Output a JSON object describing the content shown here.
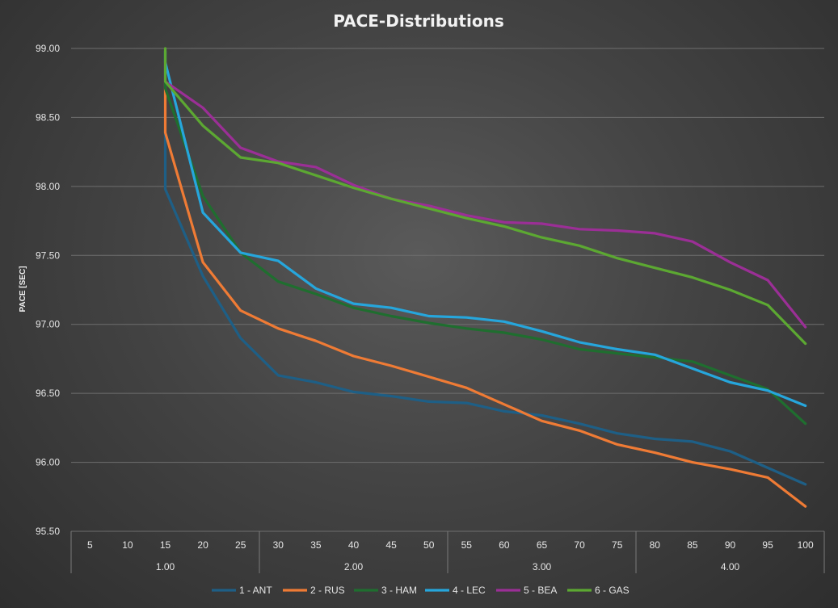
{
  "chart_data": {
    "type": "line",
    "title": "PACE-Distributions",
    "ylabel": "PACE [SEC]",
    "xlabel": "",
    "ylim": [
      95.5,
      99.0
    ],
    "yticks": [
      "95.50",
      "96.00",
      "96.50",
      "97.00",
      "97.50",
      "98.00",
      "98.50",
      "99.00"
    ],
    "categories": [
      "5",
      "10",
      "15",
      "20",
      "25",
      "30",
      "35",
      "40",
      "45",
      "50",
      "55",
      "60",
      "65",
      "70",
      "75",
      "80",
      "85",
      "90",
      "95",
      "100"
    ],
    "groups": [
      {
        "label": "1.00",
        "count": 5
      },
      {
        "label": "2.00",
        "count": 5
      },
      {
        "label": "3.00",
        "count": 5
      },
      {
        "label": "4.00",
        "count": 5
      }
    ],
    "series": [
      {
        "name": "1 - ANT",
        "color": "#1e5f86",
        "top_value": 98.4,
        "values": [
          null,
          null,
          97.98,
          97.35,
          96.9,
          96.63,
          96.58,
          96.51,
          96.48,
          96.44,
          96.43,
          96.37,
          96.34,
          96.28,
          96.21,
          96.17,
          96.15,
          96.08,
          95.96,
          95.84
        ]
      },
      {
        "name": "2 - RUS",
        "color": "#ef7b35",
        "top_value": 98.75,
        "values": [
          null,
          null,
          98.39,
          97.45,
          97.1,
          96.97,
          96.88,
          96.77,
          96.7,
          96.62,
          96.54,
          96.42,
          96.3,
          96.23,
          96.13,
          96.07,
          96.0,
          95.95,
          95.89,
          95.68
        ]
      },
      {
        "name": "3 - HAM",
        "color": "#1f6e2f",
        "top_value": 98.98,
        "values": [
          null,
          null,
          98.71,
          97.93,
          97.52,
          97.31,
          97.22,
          97.12,
          97.06,
          97.01,
          96.97,
          96.94,
          96.89,
          96.82,
          96.79,
          96.76,
          96.73,
          96.63,
          96.53,
          96.28
        ]
      },
      {
        "name": "4 - LEC",
        "color": "#26a6dc",
        "top_value": 98.98,
        "values": [
          null,
          null,
          98.9,
          97.81,
          97.52,
          97.46,
          97.26,
          97.15,
          97.12,
          97.06,
          97.05,
          97.02,
          96.95,
          96.87,
          96.82,
          96.78,
          96.68,
          96.58,
          96.52,
          96.41
        ]
      },
      {
        "name": "5 - BEA",
        "color": "#9b2f96",
        "top_value": 98.9,
        "values": [
          null,
          null,
          98.76,
          98.57,
          98.28,
          98.18,
          98.14,
          98.01,
          97.91,
          97.86,
          97.79,
          97.74,
          97.73,
          97.69,
          97.68,
          97.66,
          97.6,
          97.45,
          97.32,
          96.98
        ]
      },
      {
        "name": "6 - GAS",
        "color": "#5ca832",
        "top_value": 99.0,
        "values": [
          null,
          null,
          98.76,
          98.44,
          98.21,
          98.17,
          98.08,
          97.99,
          97.91,
          97.84,
          97.77,
          97.71,
          97.63,
          97.57,
          97.48,
          97.41,
          97.34,
          97.25,
          97.14,
          96.86
        ]
      }
    ],
    "legend_position": "bottom",
    "grid": true
  }
}
